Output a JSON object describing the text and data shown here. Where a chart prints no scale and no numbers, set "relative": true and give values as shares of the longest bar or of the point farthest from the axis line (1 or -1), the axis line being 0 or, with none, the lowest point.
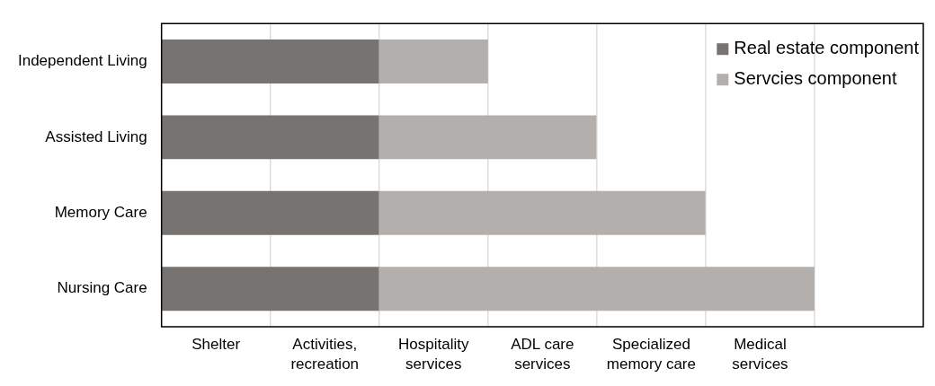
{
  "chart_data": {
    "type": "bar",
    "orientation": "horizontal",
    "stacked": true,
    "relative": true,
    "categories": [
      "Independent Living",
      "Assisted Living",
      "Memory Care",
      "Nursing Care"
    ],
    "series": [
      {
        "name": "Real estate component",
        "color": "#777370",
        "values": [
          0.333,
          0.333,
          0.333,
          0.333
        ]
      },
      {
        "name": "Servcies component",
        "color": "#b3afac",
        "values": [
          0.167,
          0.333,
          0.5,
          0.667
        ]
      }
    ],
    "annotations": [
      "Shelter",
      "Activities,\nrecreation",
      "Hospitality\nservices",
      "ADL care\nservices",
      "Specialized\nmemory care",
      "Medical\nservices"
    ],
    "grid": "x",
    "legend": "top right"
  }
}
